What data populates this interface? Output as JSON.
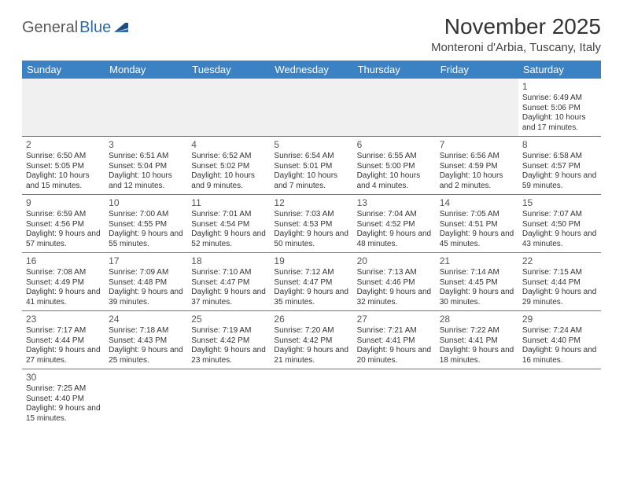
{
  "logo": {
    "text1": "General",
    "text2": "Blue"
  },
  "title": "November 2025",
  "location": "Monteroni d'Arbia, Tuscany, Italy",
  "colors": {
    "header_bg": "#3a82c4",
    "header_text": "#ffffff",
    "border": "#3a82c4",
    "body_text": "#333333",
    "empty_bg": "#f0f0f0",
    "logo_gray": "#5a5a5a",
    "logo_blue": "#2c6ca8"
  },
  "columns": [
    "Sunday",
    "Monday",
    "Tuesday",
    "Wednesday",
    "Thursday",
    "Friday",
    "Saturday"
  ],
  "weeks": [
    [
      null,
      null,
      null,
      null,
      null,
      null,
      {
        "n": "1",
        "sr": "6:49 AM",
        "ss": "5:06 PM",
        "dl": "10 hours and 17 minutes."
      }
    ],
    [
      {
        "n": "2",
        "sr": "6:50 AM",
        "ss": "5:05 PM",
        "dl": "10 hours and 15 minutes."
      },
      {
        "n": "3",
        "sr": "6:51 AM",
        "ss": "5:04 PM",
        "dl": "10 hours and 12 minutes."
      },
      {
        "n": "4",
        "sr": "6:52 AM",
        "ss": "5:02 PM",
        "dl": "10 hours and 9 minutes."
      },
      {
        "n": "5",
        "sr": "6:54 AM",
        "ss": "5:01 PM",
        "dl": "10 hours and 7 minutes."
      },
      {
        "n": "6",
        "sr": "6:55 AM",
        "ss": "5:00 PM",
        "dl": "10 hours and 4 minutes."
      },
      {
        "n": "7",
        "sr": "6:56 AM",
        "ss": "4:59 PM",
        "dl": "10 hours and 2 minutes."
      },
      {
        "n": "8",
        "sr": "6:58 AM",
        "ss": "4:57 PM",
        "dl": "9 hours and 59 minutes."
      }
    ],
    [
      {
        "n": "9",
        "sr": "6:59 AM",
        "ss": "4:56 PM",
        "dl": "9 hours and 57 minutes."
      },
      {
        "n": "10",
        "sr": "7:00 AM",
        "ss": "4:55 PM",
        "dl": "9 hours and 55 minutes."
      },
      {
        "n": "11",
        "sr": "7:01 AM",
        "ss": "4:54 PM",
        "dl": "9 hours and 52 minutes."
      },
      {
        "n": "12",
        "sr": "7:03 AM",
        "ss": "4:53 PM",
        "dl": "9 hours and 50 minutes."
      },
      {
        "n": "13",
        "sr": "7:04 AM",
        "ss": "4:52 PM",
        "dl": "9 hours and 48 minutes."
      },
      {
        "n": "14",
        "sr": "7:05 AM",
        "ss": "4:51 PM",
        "dl": "9 hours and 45 minutes."
      },
      {
        "n": "15",
        "sr": "7:07 AM",
        "ss": "4:50 PM",
        "dl": "9 hours and 43 minutes."
      }
    ],
    [
      {
        "n": "16",
        "sr": "7:08 AM",
        "ss": "4:49 PM",
        "dl": "9 hours and 41 minutes."
      },
      {
        "n": "17",
        "sr": "7:09 AM",
        "ss": "4:48 PM",
        "dl": "9 hours and 39 minutes."
      },
      {
        "n": "18",
        "sr": "7:10 AM",
        "ss": "4:47 PM",
        "dl": "9 hours and 37 minutes."
      },
      {
        "n": "19",
        "sr": "7:12 AM",
        "ss": "4:47 PM",
        "dl": "9 hours and 35 minutes."
      },
      {
        "n": "20",
        "sr": "7:13 AM",
        "ss": "4:46 PM",
        "dl": "9 hours and 32 minutes."
      },
      {
        "n": "21",
        "sr": "7:14 AM",
        "ss": "4:45 PM",
        "dl": "9 hours and 30 minutes."
      },
      {
        "n": "22",
        "sr": "7:15 AM",
        "ss": "4:44 PM",
        "dl": "9 hours and 29 minutes."
      }
    ],
    [
      {
        "n": "23",
        "sr": "7:17 AM",
        "ss": "4:44 PM",
        "dl": "9 hours and 27 minutes."
      },
      {
        "n": "24",
        "sr": "7:18 AM",
        "ss": "4:43 PM",
        "dl": "9 hours and 25 minutes."
      },
      {
        "n": "25",
        "sr": "7:19 AM",
        "ss": "4:42 PM",
        "dl": "9 hours and 23 minutes."
      },
      {
        "n": "26",
        "sr": "7:20 AM",
        "ss": "4:42 PM",
        "dl": "9 hours and 21 minutes."
      },
      {
        "n": "27",
        "sr": "7:21 AM",
        "ss": "4:41 PM",
        "dl": "9 hours and 20 minutes."
      },
      {
        "n": "28",
        "sr": "7:22 AM",
        "ss": "4:41 PM",
        "dl": "9 hours and 18 minutes."
      },
      {
        "n": "29",
        "sr": "7:24 AM",
        "ss": "4:40 PM",
        "dl": "9 hours and 16 minutes."
      }
    ],
    [
      {
        "n": "30",
        "sr": "7:25 AM",
        "ss": "4:40 PM",
        "dl": "9 hours and 15 minutes."
      },
      null,
      null,
      null,
      null,
      null,
      null
    ]
  ],
  "labels": {
    "sunrise": "Sunrise: ",
    "sunset": "Sunset: ",
    "daylight": "Daylight: "
  }
}
